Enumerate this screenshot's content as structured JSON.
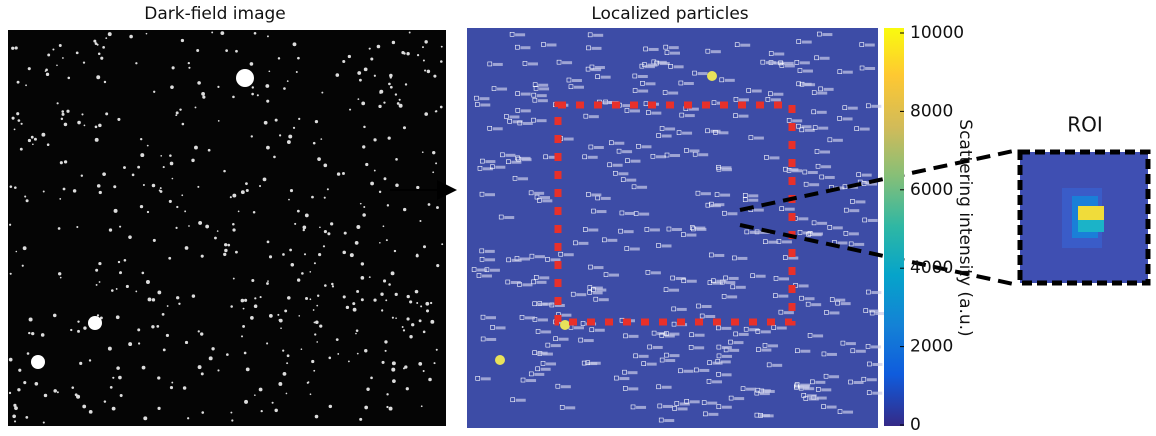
{
  "panels": {
    "left_title": "Dark-field image",
    "middle_title": "Localized particles",
    "roi_title": "ROI"
  },
  "colorbar": {
    "label": "Scattering intensity (a.u.)",
    "lim": [
      0,
      10000
    ],
    "ticks": [
      0,
      2000,
      4000,
      6000,
      8000,
      10000
    ]
  }
}
